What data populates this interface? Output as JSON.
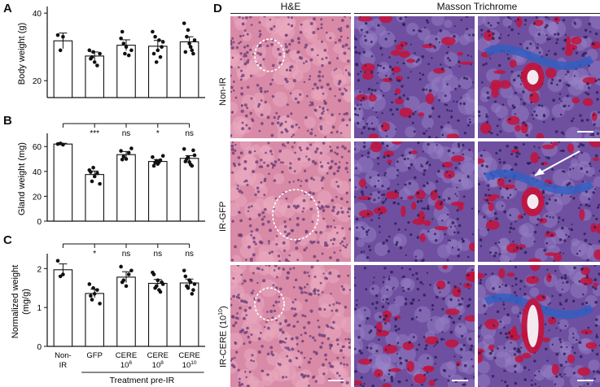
{
  "panels": {
    "A": {
      "letter": "A"
    },
    "B": {
      "letter": "B"
    },
    "C": {
      "letter": "C"
    },
    "D": {
      "letter": "D"
    }
  },
  "chart_data": [
    {
      "type": "bar",
      "panel": "A",
      "ylabel": "Body weight (g)",
      "ylim": [
        15,
        41
      ],
      "yticks": [
        20,
        40
      ],
      "categories": [
        "Non-IR",
        "GFP",
        "CERE 10^6",
        "CERE 10^8",
        "CERE 10^10"
      ],
      "values": [
        31.8,
        27.3,
        30.5,
        30.2,
        31.5
      ],
      "errors": [
        2.3,
        1.2,
        1.6,
        1.7,
        1.5
      ],
      "points": [
        [
          33.5,
          29.0,
          33.0
        ],
        [
          29.0,
          27.0,
          25.5,
          24.5,
          28.0,
          26.5,
          28.5
        ],
        [
          32.5,
          31.0,
          30.0,
          27.5,
          29.0,
          34.5,
          28.0
        ],
        [
          34.5,
          33.0,
          29.0,
          27.0,
          31.5,
          28.0,
          25.5,
          32.0,
          30.0
        ],
        [
          37.0,
          33.0,
          31.0,
          29.0,
          32.0,
          28.5,
          35.0,
          30.0,
          28.0
        ]
      ],
      "significance": []
    },
    {
      "type": "bar",
      "panel": "B",
      "ylabel": "Gland weight (mg)",
      "ylim": [
        0,
        68
      ],
      "yticks": [
        0,
        20,
        40,
        60
      ],
      "categories": [
        "Non-IR",
        "GFP",
        "CERE 10^6",
        "CERE 10^8",
        "CERE 10^10"
      ],
      "values": [
        62,
        37.5,
        53.5,
        48,
        50.5
      ],
      "errors": [
        0.6,
        2.8,
        2.5,
        1.5,
        2.2
      ],
      "points": [
        [
          62,
          62.5,
          61.5
        ],
        [
          41,
          32,
          36,
          38.5,
          30,
          39.5,
          43
        ],
        [
          56.5,
          52,
          50,
          55,
          58.5,
          49.5
        ],
        [
          51.5,
          47,
          46,
          49,
          52.5,
          44.5,
          48.5,
          47.5
        ],
        [
          58,
          50,
          47.5,
          44.5,
          53,
          48,
          51.5,
          45.5,
          57
        ]
      ],
      "significance": [
        "***",
        "ns",
        "*",
        "ns"
      ]
    },
    {
      "type": "bar",
      "panel": "C",
      "ylabel": "Normalized weight",
      "ylabel2": "(mg/g)",
      "ylim": [
        0,
        2.3
      ],
      "yticks": [
        0,
        1,
        2
      ],
      "categories": [
        "Non-IR",
        "GFP",
        "CERE 10^6",
        "CERE 10^8",
        "CERE 10^10"
      ],
      "xlabel": "Treatment pre-IR",
      "values": [
        1.97,
        1.36,
        1.78,
        1.62,
        1.63
      ],
      "errors": [
        0.15,
        0.11,
        0.14,
        0.1,
        0.1
      ],
      "points": [
        [
          2.2,
          1.8,
          1.85
        ],
        [
          1.6,
          1.2,
          1.35,
          1.45,
          1.1,
          1.3,
          1.5
        ],
        [
          2.05,
          1.7,
          1.55,
          1.85,
          1.95,
          1.65
        ],
        [
          1.9,
          1.5,
          1.7,
          1.4,
          1.6,
          1.85,
          1.55,
          1.45,
          1.65
        ],
        [
          1.95,
          1.55,
          1.7,
          1.35,
          1.6,
          1.8,
          1.5,
          1.65,
          1.45
        ]
      ],
      "significance": [
        "*",
        "ns",
        "ns",
        "ns"
      ]
    }
  ],
  "xaxis": {
    "labels": [
      {
        "line1": "Non-",
        "line2": "IR",
        "sup": ""
      },
      {
        "line1": "GFP",
        "line2": "",
        "sup": ""
      },
      {
        "line1": "CERE",
        "line2": "10",
        "sup": "6"
      },
      {
        "line1": "CERE",
        "line2": "10",
        "sup": "8"
      },
      {
        "line1": "CERE",
        "line2": "10",
        "sup": "10"
      }
    ],
    "group_label": "Treatment pre-IR"
  },
  "panel_d": {
    "col_headers": [
      "H&E",
      "Masson Trichrome"
    ],
    "rows": [
      {
        "label": "Non-IR",
        "sup": ""
      },
      {
        "label": "IR-GFP",
        "sup": ""
      },
      {
        "label": "IR-CERE (10",
        "sup": "10",
        "tail": ")"
      }
    ],
    "colors": {
      "he_bg": "#d98aa6",
      "he_dot": "#6a3f7a",
      "mt_bg": "#6f4fa0",
      "mt_red": "#c4123a",
      "mt_blue": "#2f5fc2"
    }
  }
}
